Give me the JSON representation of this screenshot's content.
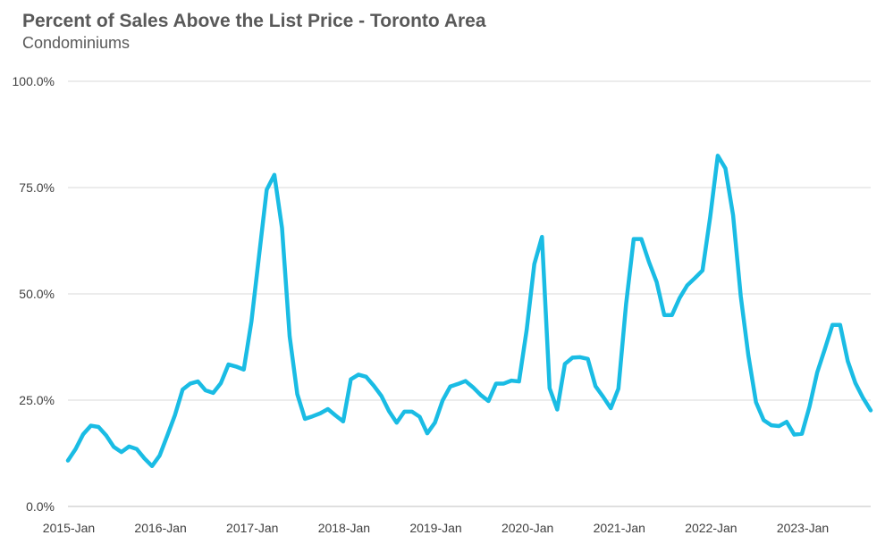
{
  "chart_data": {
    "type": "line",
    "title": "Percent of Sales Above the List Price - Toronto Area",
    "subtitle": "Condominiums",
    "xlabel": "",
    "ylabel": "",
    "ylim": [
      0,
      100
    ],
    "y_ticks": [
      "0.0%",
      "25.0%",
      "50.0%",
      "75.0%",
      "100.0%"
    ],
    "y_tick_values": [
      0,
      25,
      50,
      75,
      100
    ],
    "x_tick_labels": [
      "2015-Jan",
      "2016-Jan",
      "2017-Jan",
      "2018-Jan",
      "2019-Jan",
      "2020-Jan",
      "2021-Jan",
      "2022-Jan",
      "2023-Jan"
    ],
    "x_start": "2015-01",
    "x_end": "2023-09",
    "grid": true,
    "legend": "none",
    "series_color": "#1ABCE4",
    "series": [
      {
        "values": [
          10.8,
          13.5,
          17.0,
          19.0,
          18.7,
          16.7,
          14.0,
          12.8,
          14.1,
          13.5,
          11.3,
          9.5,
          12.0,
          16.7,
          21.5,
          27.5,
          28.9,
          29.4,
          27.3,
          26.7,
          29.0,
          33.4,
          32.9,
          32.2,
          43.5,
          59.0,
          74.5,
          78.0,
          65.5,
          40.0,
          26.4,
          20.6,
          21.2,
          21.9,
          22.9,
          21.4,
          20.0,
          29.9,
          31.0,
          30.5,
          28.4,
          26.0,
          22.4,
          19.7,
          22.3,
          22.3,
          21.1,
          17.2,
          19.7,
          24.9,
          28.2,
          28.8,
          29.5,
          28.0,
          26.2,
          24.8,
          28.9,
          28.9,
          29.6,
          29.4,
          41.5,
          57.0,
          63.4,
          27.8,
          22.8,
          33.5,
          35.0,
          35.1,
          34.7,
          28.3,
          25.8,
          23.1,
          27.7,
          47.5,
          62.9,
          62.9,
          57.5,
          52.8,
          45.0,
          45.0,
          49.0,
          52.0,
          53.7,
          55.5,
          68.0,
          82.5,
          79.5,
          68.5,
          49.5,
          35.5,
          24.5,
          20.3,
          19.1,
          18.9,
          19.9,
          16.9,
          17.1,
          23.5,
          31.5,
          37.0,
          42.7,
          42.7,
          34.2,
          29.0,
          25.5,
          22.6
        ]
      }
    ]
  }
}
